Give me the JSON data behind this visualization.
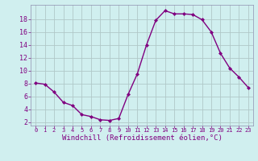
{
  "x": [
    0,
    1,
    2,
    3,
    4,
    5,
    6,
    7,
    8,
    9,
    10,
    11,
    12,
    13,
    14,
    15,
    16,
    17,
    18,
    19,
    20,
    21,
    22,
    23
  ],
  "y": [
    8.1,
    7.9,
    6.7,
    5.1,
    4.6,
    3.2,
    2.9,
    2.4,
    2.3,
    2.6,
    6.3,
    9.5,
    14.0,
    17.8,
    19.3,
    18.8,
    18.8,
    18.7,
    17.9,
    16.0,
    12.7,
    10.4,
    9.0,
    7.4
  ],
  "line_color": "#800080",
  "marker": "D",
  "marker_size": 2,
  "line_width": 1.0,
  "bg_color": "#d0efef",
  "grid_color": "#b0c8c8",
  "xlabel": "Windchill (Refroidissement éolien,°C)",
  "xlabel_color": "#800080",
  "tick_color": "#800080",
  "ylim": [
    1.5,
    20.2
  ],
  "xlim": [
    -0.5,
    23.5
  ],
  "yticks": [
    2,
    4,
    6,
    8,
    10,
    12,
    14,
    16,
    18
  ],
  "xticks": [
    0,
    1,
    2,
    3,
    4,
    5,
    6,
    7,
    8,
    9,
    10,
    11,
    12,
    13,
    14,
    15,
    16,
    17,
    18,
    19,
    20,
    21,
    22,
    23
  ],
  "font_family": "monospace",
  "xlabel_fontsize": 6.5,
  "tick_fontsize_x": 5.0,
  "tick_fontsize_y": 6.0
}
